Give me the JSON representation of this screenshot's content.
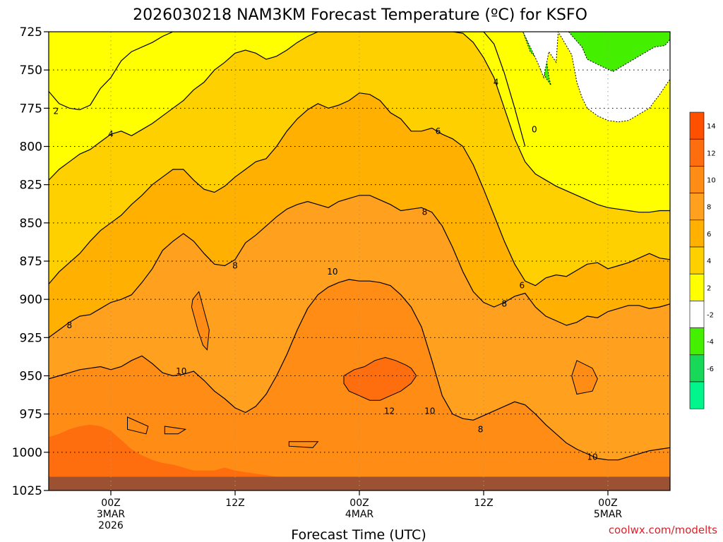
{
  "chart_data": {
    "type": "heatmap",
    "title": "2026030218 NAM3KM Forecast Temperature (ºC) for KSFO",
    "xlabel": "Forecast Time (UTC)",
    "ylabel": "",
    "ylim": [
      1025,
      725
    ],
    "y_ticks": [
      "725",
      "750",
      "775",
      "800",
      "825",
      "850",
      "875",
      "900",
      "925",
      "950",
      "975",
      "1000",
      "1025"
    ],
    "x_ticks": [
      {
        "hours": 0,
        "lines": [
          "00Z",
          "3MAR",
          "2026"
        ]
      },
      {
        "hours": 12,
        "lines": [
          "12Z"
        ]
      },
      {
        "hours": 24,
        "lines": [
          "00Z",
          "4MAR"
        ]
      },
      {
        "hours": 36,
        "lines": [
          "12Z"
        ]
      },
      {
        "hours": 48,
        "lines": [
          "00Z",
          "5MAR"
        ]
      }
    ],
    "x_range_hours": [
      -6,
      54
    ],
    "grid": true,
    "colorbar": {
      "labels": [
        "14",
        "12",
        "10",
        "8",
        "6",
        "4",
        "2",
        "-2",
        "-4",
        "-6"
      ],
      "bins": [
        {
          "lo": 14,
          "hi": 16,
          "color": "#ff5000"
        },
        {
          "lo": 12,
          "hi": 14,
          "color": "#ff6e0e"
        },
        {
          "lo": 10,
          "hi": 12,
          "color": "#ff8c14"
        },
        {
          "lo": 8,
          "hi": 10,
          "color": "#ffa01e"
        },
        {
          "lo": 6,
          "hi": 8,
          "color": "#ffb000"
        },
        {
          "lo": 4,
          "hi": 6,
          "color": "#ffd000"
        },
        {
          "lo": 2,
          "hi": 4,
          "color": "#ffff00"
        },
        {
          "lo": -2,
          "hi": 2,
          "color": "#ffffff"
        },
        {
          "lo": -4,
          "hi": -2,
          "color": "#44f000"
        },
        {
          "lo": -6,
          "hi": -4,
          "color": "#18d858"
        },
        {
          "lo": -8,
          "hi": -6,
          "color": "#00f58c"
        }
      ]
    },
    "contour_labels": [
      {
        "text": "2",
        "hours": -5.3,
        "pressure": 777
      },
      {
        "text": "4",
        "hours": 0.0,
        "pressure": 792
      },
      {
        "text": "4",
        "hours": 37.2,
        "pressure": 758
      },
      {
        "text": "0",
        "hours": 40.9,
        "pressure": 789
      },
      {
        "text": "6",
        "hours": 31.6,
        "pressure": 790
      },
      {
        "text": "8",
        "hours": 30.3,
        "pressure": 843
      },
      {
        "text": "6",
        "hours": 39.7,
        "pressure": 891
      },
      {
        "text": "8",
        "hours": 12.0,
        "pressure": 878
      },
      {
        "text": "10",
        "hours": 21.4,
        "pressure": 882
      },
      {
        "text": "8",
        "hours": 38.0,
        "pressure": 903
      },
      {
        "text": "8",
        "hours": -4.0,
        "pressure": 917
      },
      {
        "text": "10",
        "hours": 6.8,
        "pressure": 947
      },
      {
        "text": "12",
        "hours": 26.9,
        "pressure": 973
      },
      {
        "text": "10",
        "hours": 30.8,
        "pressure": 973
      },
      {
        "text": "8",
        "hours": 35.7,
        "pressure": 985
      },
      {
        "text": "10",
        "hours": 46.5,
        "pressure": 1003
      }
    ],
    "series": [
      {
        "temperature_c": 2,
        "hours": [
          -6,
          -5,
          -4,
          -3,
          -2,
          -1,
          0,
          1,
          2,
          3,
          4,
          5,
          6,
          7,
          8,
          9,
          10,
          11,
          12,
          13,
          14,
          15,
          16,
          17,
          18,
          19,
          20,
          21,
          22,
          23,
          24,
          25,
          26,
          27,
          28,
          29,
          30,
          31,
          32,
          33,
          34,
          35,
          36,
          37,
          38,
          39,
          40
        ],
        "pressure": [
          764,
          772,
          775,
          776,
          773,
          762,
          755,
          744,
          738,
          735,
          732,
          728,
          725,
          725,
          725,
          725,
          725,
          725,
          725,
          725,
          725,
          725,
          725,
          725,
          725,
          725,
          725,
          725,
          725,
          725,
          725,
          725,
          725,
          725,
          725,
          725,
          725,
          725,
          725,
          725,
          725,
          725,
          725,
          733,
          752,
          775,
          800
        ]
      },
      {
        "temperature_c": 4,
        "hours": [
          -6,
          -5,
          -4,
          -3,
          -2,
          -1,
          0,
          1,
          2,
          3,
          4,
          5,
          6,
          7,
          8,
          9,
          10,
          11,
          12,
          13,
          14,
          15,
          16,
          17,
          18,
          19,
          20,
          21,
          22,
          23,
          24,
          25,
          26,
          27,
          28,
          29,
          30,
          31,
          32,
          33,
          34,
          35,
          36,
          37,
          38,
          39,
          40,
          41,
          42,
          43,
          44,
          45,
          46,
          47,
          48,
          49,
          50,
          51,
          52,
          53,
          54
        ],
        "pressure": [
          822,
          815,
          810,
          805,
          802,
          797,
          792,
          790,
          793,
          789,
          785,
          780,
          775,
          770,
          763,
          758,
          750,
          745,
          739,
          737,
          739,
          743,
          741,
          737,
          732,
          728,
          725,
          725,
          725,
          725,
          725,
          725,
          725,
          725,
          725,
          725,
          725,
          725,
          725,
          725,
          726,
          732,
          742,
          755,
          775,
          795,
          810,
          818,
          822,
          826,
          829,
          832,
          835,
          838,
          840,
          841,
          842,
          843,
          843,
          842,
          842
        ]
      },
      {
        "temperature_c": 6,
        "hours": [
          -6,
          -5,
          -4,
          -3,
          -2,
          -1,
          0,
          1,
          2,
          3,
          4,
          5,
          6,
          7,
          8,
          9,
          10,
          11,
          12,
          13,
          14,
          15,
          16,
          17,
          18,
          19,
          20,
          21,
          22,
          23,
          24,
          25,
          26,
          27,
          28,
          29,
          30,
          31,
          32,
          33,
          34,
          35,
          36,
          37,
          38,
          39,
          40,
          41,
          42,
          43,
          44,
          45,
          46,
          47,
          48,
          49,
          50,
          51,
          52,
          53,
          54
        ],
        "pressure": [
          890,
          882,
          876,
          870,
          862,
          855,
          850,
          845,
          838,
          832,
          825,
          820,
          815,
          815,
          822,
          828,
          830,
          826,
          820,
          815,
          810,
          808,
          800,
          790,
          782,
          776,
          772,
          775,
          773,
          770,
          765,
          766,
          770,
          778,
          782,
          790,
          790,
          788,
          792,
          795,
          800,
          812,
          828,
          845,
          862,
          877,
          888,
          891,
          886,
          884,
          885,
          881,
          877,
          876,
          880,
          878,
          876,
          873,
          870,
          873,
          874
        ]
      },
      {
        "temperature_c": 8,
        "hours": [
          -6,
          -5,
          -4,
          -3,
          -2,
          -1,
          0,
          1,
          2,
          3,
          4,
          5,
          6,
          7,
          8,
          9,
          10,
          11,
          12,
          13,
          14,
          15,
          16,
          17,
          18,
          19,
          20,
          21,
          22,
          23,
          24,
          25,
          26,
          27,
          28,
          29,
          30,
          31,
          32,
          33,
          34,
          35,
          36,
          37,
          38,
          39,
          40,
          41,
          42,
          43,
          44,
          45,
          46,
          47,
          48,
          49,
          50,
          51,
          52,
          53,
          54
        ],
        "pressure": [
          925,
          920,
          915,
          911,
          910,
          906,
          902,
          900,
          897,
          889,
          880,
          868,
          862,
          857,
          862,
          870,
          877,
          878,
          874,
          863,
          858,
          852,
          846,
          841,
          838,
          836,
          838,
          840,
          836,
          834,
          832,
          832,
          835,
          838,
          842,
          841,
          840,
          843,
          852,
          866,
          882,
          895,
          902,
          905,
          902,
          898,
          896,
          905,
          911,
          914,
          917,
          915,
          911,
          912,
          908,
          906,
          904,
          904,
          906,
          905,
          903
        ]
      },
      {
        "temperature_c": 10,
        "hours": [
          -6,
          -5,
          -4,
          -3,
          -2,
          -1,
          0,
          1,
          2,
          3,
          4,
          5,
          6,
          7,
          8,
          9,
          10,
          11,
          12,
          13,
          14,
          15,
          16,
          17,
          18,
          19,
          20,
          21,
          22,
          23,
          24,
          25,
          26,
          27,
          28,
          29,
          30,
          31,
          32,
          33,
          34,
          35,
          36,
          37,
          38,
          39,
          40,
          41,
          42,
          43,
          44,
          45,
          46,
          47,
          48,
          49,
          50,
          51,
          52,
          53,
          54
        ],
        "pressure": [
          952,
          950,
          948,
          946,
          945,
          944,
          946,
          944,
          940,
          937,
          942,
          948,
          950,
          949,
          947,
          953,
          960,
          965,
          971,
          974,
          970,
          962,
          950,
          936,
          920,
          906,
          897,
          892,
          889,
          887,
          888,
          888,
          889,
          891,
          897,
          905,
          918,
          940,
          963,
          975,
          978,
          979,
          976,
          973,
          970,
          967,
          969,
          975,
          982,
          988,
          994,
          998,
          1001,
          1004,
          1005,
          1005,
          1003,
          1001,
          999,
          998,
          997
        ]
      },
      {
        "temperature_c": 12,
        "hours": [
          -6,
          -5,
          -4,
          -3,
          -2,
          -1,
          0,
          1,
          2,
          3,
          4,
          5,
          6,
          7,
          8,
          9,
          10,
          11,
          12,
          13,
          14,
          15,
          16,
          17,
          18,
          19,
          20,
          21,
          22,
          23,
          24,
          25,
          26,
          27,
          28,
          29,
          30,
          31,
          32,
          33,
          34,
          35,
          36,
          37,
          38,
          39,
          40,
          41,
          42,
          43,
          44,
          45,
          46,
          47,
          48,
          49,
          50,
          51,
          52,
          53,
          54
        ],
        "pressure": [
          990,
          988,
          985,
          983,
          982,
          983,
          986,
          992,
          998,
          1002,
          1005,
          1007,
          1008,
          1010,
          1012,
          1012,
          1012,
          1010,
          1012,
          1013,
          1014,
          1015,
          1016,
          1016,
          1016,
          1016,
          1016,
          1016,
          1016,
          1016,
          1016,
          1016,
          1016,
          1016,
          1016,
          1016,
          1016,
          1016,
          1016,
          1016,
          1016,
          1016,
          1016,
          1016,
          1016,
          1016,
          1016,
          1016,
          1016,
          1016,
          1016,
          1016,
          1016,
          1016,
          1016,
          1016,
          1016,
          1016,
          1016,
          1016,
          1016
        ]
      }
    ],
    "colored_regions": [
      {
        "temperature_c": 12,
        "hours": [
          23.5,
          24.5,
          25.5,
          26.5,
          27.5,
          28.5,
          29.0,
          29.5,
          29.0,
          28.0,
          27.0,
          26.0,
          25.0,
          24.0,
          23.0,
          22.5,
          22.5,
          23.0,
          23.5
        ],
        "pressure": [
          946,
          944,
          940,
          938,
          940,
          943,
          945,
          950,
          955,
          960,
          963,
          966,
          966,
          963,
          960,
          955,
          950,
          948,
          946
        ]
      },
      {
        "temperature_c": 10,
        "hours": [
          8.5,
          9.5,
          9.3,
          8.9,
          8.4,
          8.0,
          7.8,
          7.9,
          8.5
        ],
        "pressure": [
          895,
          920,
          933,
          930,
          920,
          910,
          905,
          900,
          895
        ]
      },
      {
        "temperature_c": 10,
        "hours": [
          45.0,
          46.5,
          47.0,
          46.5,
          45.0,
          44.5,
          45.0
        ],
        "pressure": [
          940,
          945,
          952,
          960,
          962,
          950,
          940
        ]
      },
      {
        "temperature_c": 10,
        "hours": [
          1.6,
          3.6,
          3.4,
          1.6,
          1.6
        ],
        "pressure": [
          977,
          983,
          988,
          985,
          977
        ]
      },
      {
        "temperature_c": 10,
        "hours": [
          5.2,
          7.2,
          6.5,
          5.2,
          5.2
        ],
        "pressure": [
          983,
          985,
          988,
          988,
          983
        ]
      },
      {
        "temperature_c": 10,
        "hours": [
          17.2,
          20.0,
          19.5,
          17.2,
          17.2
        ],
        "pressure": [
          993,
          993,
          997,
          996,
          993
        ]
      },
      {
        "temperature_c": -4,
        "hours": [
          39.8,
          40.5,
          41.5,
          42.0,
          42.5,
          42.3,
          41.8,
          41.2,
          40.5,
          39.8
        ],
        "pressure": [
          725,
          738,
          745,
          755,
          760,
          755,
          730,
          725,
          725,
          725
        ]
      },
      {
        "temperature_c": -2,
        "hours": [
          38.8,
          39.8,
          40.5,
          41.2,
          41.8,
          42.3,
          43.0,
          43.2,
          44.5,
          45.0,
          45.5,
          46.0,
          47.0,
          48.0,
          49.0,
          50.0,
          51.0,
          52.0,
          53.0,
          54.0,
          54.0,
          38.8
        ],
        "pressure": [
          725,
          725,
          735,
          745,
          755,
          738,
          745,
          725,
          740,
          758,
          768,
          775,
          780,
          783,
          784,
          783,
          779,
          775,
          766,
          756,
          725,
          725
        ]
      },
      {
        "temperature_c": -4,
        "hours": [
          44.2,
          45.5,
          46.0,
          47.5,
          48.5,
          49.5,
          50.5,
          51.5,
          52.5,
          53.5,
          54.0,
          54.0,
          44.2
        ],
        "pressure": [
          725,
          735,
          743,
          748,
          751,
          747,
          743,
          739,
          735,
          734,
          730,
          725,
          725
        ]
      }
    ],
    "ground": {
      "pressure": 1016,
      "color": "#9c5232"
    },
    "credit": "coolwx.com/modelts"
  }
}
